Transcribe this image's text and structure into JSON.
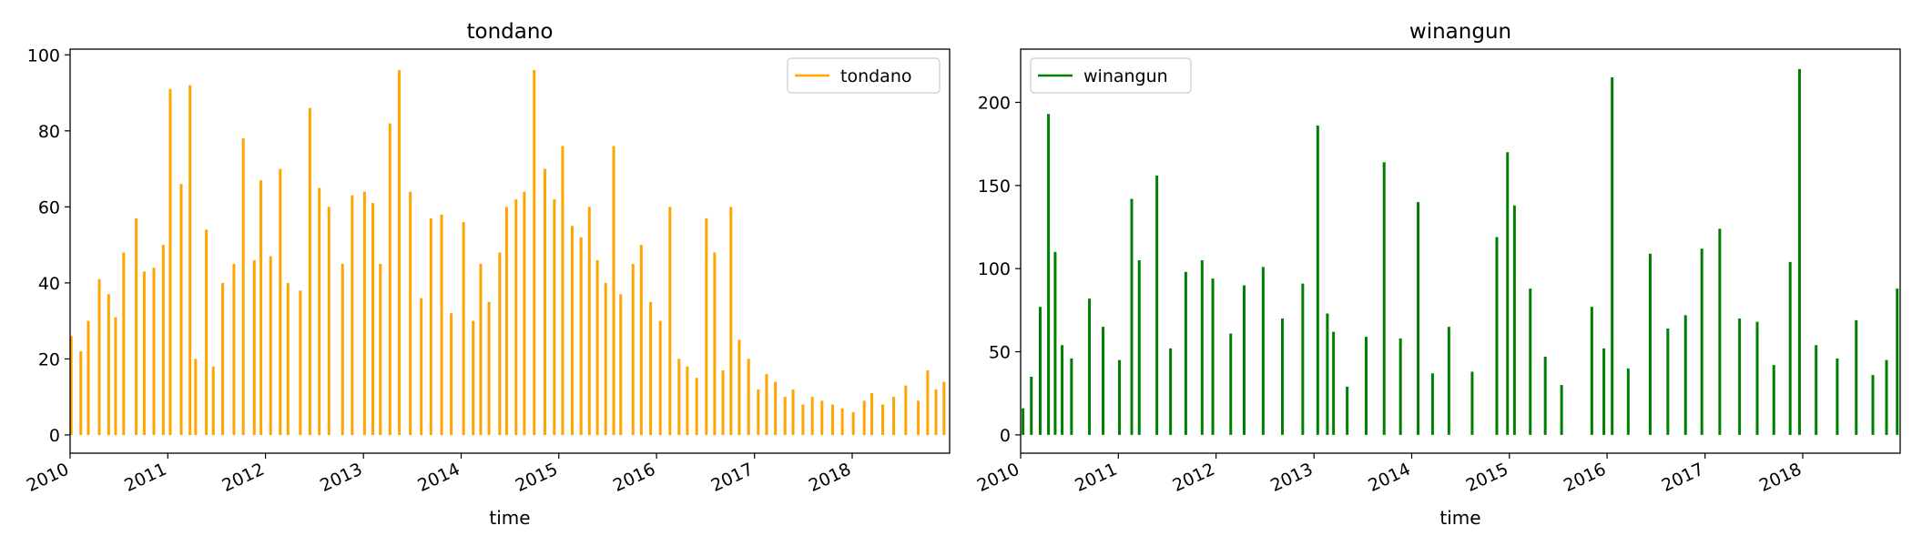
{
  "chart_data": [
    {
      "type": "line",
      "title": "tondano",
      "xlabel": "time",
      "ylabel": "",
      "x_ticks": [
        "2010",
        "2011",
        "2012",
        "2013",
        "2014",
        "2015",
        "2016",
        "2017",
        "2018"
      ],
      "y_ticks": [
        "0",
        "20",
        "40",
        "60",
        "80",
        "100"
      ],
      "xlim": [
        "2010-01-01",
        "2018-12-31"
      ],
      "ylim": [
        -4.8,
        101.5
      ],
      "grid": false,
      "legend_position": "top-right",
      "series": [
        {
          "name": "tondano",
          "color": "#FFA500",
          "x": [
            "2010-01-05",
            "2010-02-10",
            "2010-03-10",
            "2010-04-20",
            "2010-05-25",
            "2010-06-20",
            "2010-07-20",
            "2010-09-05",
            "2010-10-05",
            "2010-11-10",
            "2010-12-15",
            "2011-01-10",
            "2011-02-20",
            "2011-03-25",
            "2011-04-15",
            "2011-05-25",
            "2011-06-20",
            "2011-07-25",
            "2011-09-05",
            "2011-10-10",
            "2011-11-20",
            "2011-12-15",
            "2012-01-20",
            "2012-02-25",
            "2012-03-25",
            "2012-05-10",
            "2012-06-15",
            "2012-07-20",
            "2012-08-25",
            "2012-10-15",
            "2012-11-20",
            "2013-01-05",
            "2013-02-05",
            "2013-03-05",
            "2013-04-10",
            "2013-05-15",
            "2013-06-25",
            "2013-08-05",
            "2013-09-10",
            "2013-10-20",
            "2013-11-25",
            "2014-01-10",
            "2014-02-15",
            "2014-03-15",
            "2014-04-15",
            "2014-05-25",
            "2014-06-20",
            "2014-07-25",
            "2014-08-25",
            "2014-10-01",
            "2014-11-10",
            "2014-12-15",
            "2015-01-15",
            "2015-02-20",
            "2015-03-25",
            "2015-04-25",
            "2015-05-25",
            "2015-06-25",
            "2015-07-25",
            "2015-08-20",
            "2015-10-05",
            "2015-11-05",
            "2015-12-10",
            "2016-01-15",
            "2016-02-20",
            "2016-03-25",
            "2016-04-25",
            "2016-05-30",
            "2016-07-05",
            "2016-08-05",
            "2016-09-05",
            "2016-10-05",
            "2016-11-05",
            "2016-12-10",
            "2017-01-15",
            "2017-02-15",
            "2017-03-20",
            "2017-04-25",
            "2017-05-25",
            "2017-07-01",
            "2017-08-05",
            "2017-09-10",
            "2017-10-20",
            "2017-11-25",
            "2018-01-05",
            "2018-02-15",
            "2018-03-15",
            "2018-04-25",
            "2018-06-05",
            "2018-07-20",
            "2018-09-05",
            "2018-10-10",
            "2018-11-10",
            "2018-12-10"
          ],
          "y": [
            26,
            22,
            30,
            41,
            37,
            31,
            48,
            57,
            43,
            44,
            50,
            91,
            66,
            92,
            20,
            54,
            18,
            40,
            45,
            78,
            46,
            67,
            47,
            70,
            40,
            38,
            86,
            65,
            60,
            45,
            63,
            64,
            61,
            45,
            82,
            96,
            64,
            36,
            57,
            58,
            32,
            56,
            30,
            45,
            35,
            48,
            60,
            62,
            64,
            96,
            70,
            62,
            76,
            55,
            52,
            60,
            46,
            40,
            76,
            37,
            45,
            50,
            35,
            30,
            60,
            20,
            18,
            15,
            57,
            48,
            17,
            60,
            25,
            20,
            12,
            16,
            14,
            10,
            12,
            8,
            10,
            9,
            8,
            7,
            6,
            9,
            11,
            8,
            10,
            13,
            9,
            17,
            12,
            14
          ]
        }
      ]
    },
    {
      "type": "line",
      "title": "winangun",
      "xlabel": "time",
      "ylabel": "",
      "x_ticks": [
        "2010",
        "2011",
        "2012",
        "2013",
        "2014",
        "2015",
        "2016",
        "2017",
        "2018"
      ],
      "y_ticks": [
        "0",
        "50",
        "100",
        "150",
        "200"
      ],
      "xlim": [
        "2010-01-01",
        "2018-12-31"
      ],
      "ylim": [
        -11,
        232
      ],
      "grid": false,
      "legend_position": "top-left",
      "series": [
        {
          "name": "winangun",
          "color": "#008000",
          "x": [
            "2010-01-10",
            "2010-02-10",
            "2010-03-15",
            "2010-04-15",
            "2010-05-10",
            "2010-06-05",
            "2010-07-10",
            "2010-09-15",
            "2010-11-05",
            "2011-01-05",
            "2011-02-20",
            "2011-03-20",
            "2011-05-25",
            "2011-07-15",
            "2011-09-10",
            "2011-11-10",
            "2011-12-20",
            "2012-02-25",
            "2012-04-15",
            "2012-06-25",
            "2012-09-05",
            "2012-11-20",
            "2013-01-15",
            "2013-02-20",
            "2013-03-15",
            "2013-05-05",
            "2013-07-15",
            "2013-09-20",
            "2013-11-20",
            "2014-01-25",
            "2014-03-20",
            "2014-05-20",
            "2014-08-15",
            "2014-11-15",
            "2014-12-25",
            "2015-01-20",
            "2015-03-20",
            "2015-05-15",
            "2015-07-15",
            "2015-11-05",
            "2015-12-20",
            "2016-01-20",
            "2016-03-20",
            "2016-06-10",
            "2016-08-15",
            "2016-10-20",
            "2016-12-20",
            "2017-02-25",
            "2017-05-10",
            "2017-07-15",
            "2017-09-15",
            "2017-11-15",
            "2017-12-20",
            "2018-02-20",
            "2018-05-10",
            "2018-07-20",
            "2018-09-20",
            "2018-11-10",
            "2018-12-20"
          ],
          "y": [
            16,
            35,
            77,
            193,
            110,
            54,
            46,
            82,
            65,
            45,
            142,
            105,
            156,
            52,
            98,
            105,
            94,
            61,
            90,
            101,
            70,
            91,
            186,
            73,
            62,
            29,
            59,
            164,
            58,
            140,
            37,
            65,
            38,
            119,
            170,
            138,
            88,
            47,
            30,
            77,
            52,
            215,
            40,
            109,
            64,
            72,
            112,
            124,
            70,
            68,
            42,
            104,
            220,
            54,
            46,
            69,
            36,
            45,
            88
          ]
        }
      ]
    }
  ]
}
